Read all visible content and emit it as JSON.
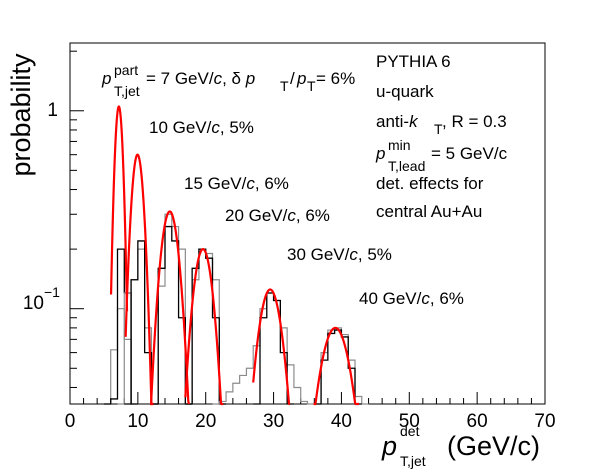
{
  "chart_data": {
    "type": "line",
    "x_axis": {
      "label": "p",
      "label_sup": "det",
      "label_sub": "T,jet",
      "unit": "(GeV/c)",
      "range": [
        0,
        70
      ],
      "ticks": [
        "0",
        "10",
        "20",
        "30",
        "40",
        "50",
        "60",
        "70"
      ]
    },
    "y_axis": {
      "label": "probability",
      "scale": "log",
      "range": [
        0.033,
        2.2
      ],
      "ticks": [
        {
          "value": 1,
          "label": "1"
        },
        {
          "value": 0.1,
          "label": "10",
          "exp": "−1"
        }
      ]
    },
    "header": {
      "p": "p",
      "sup": "part",
      "sub": "T,jet",
      "value_text": " = 7 GeV/",
      "c_text": "c",
      "comma": ", ",
      "delta": "δ ",
      "pt1": "p",
      "sub1": "T",
      "slash": "/",
      "pt2": "p",
      "sub2": "T",
      "res": " = 6%"
    },
    "info_box": {
      "generator": "PYTHIA 6",
      "parton": "u-quark",
      "algo_prefix": "anti-",
      "algo_k": "k",
      "algo_sub": "T",
      "algo_suffix": ", R = 0.3",
      "lead_p": "p",
      "lead_sup": "min",
      "lead_sub": "T,lead",
      "lead_value": " = 5 GeV/c",
      "det_line1": "det. effects for",
      "det_line2": "central Au+Au"
    },
    "series": [
      {
        "pt": 7,
        "res_pct": 6,
        "black": [
          [
            5,
            0.032
          ],
          [
            6,
            0.035
          ],
          [
            7,
            0.2
          ],
          [
            8,
            0.12
          ],
          [
            9,
            0.032
          ]
        ],
        "gray": [
          [
            5,
            0.032
          ],
          [
            6,
            0.062
          ],
          [
            7,
            0.1
          ],
          [
            8,
            0.07
          ],
          [
            9,
            0.032
          ]
        ],
        "fit": {
          "mu": 7.2,
          "sigma": 0.55,
          "peak": 1.05,
          "from": 6.05,
          "to": 8.4
        }
      },
      {
        "pt": 10,
        "res_pct": 5,
        "label": "10 GeV/",
        "c": "c",
        "suffix": ", 5%",
        "black": [
          [
            8,
            0.032
          ],
          [
            9,
            0.14
          ],
          [
            10,
            0.22
          ],
          [
            11,
            0.06
          ],
          [
            12,
            0.032
          ]
        ],
        "gray": [
          [
            7,
            0.032
          ],
          [
            8,
            0.12
          ],
          [
            9,
            0.14
          ],
          [
            10,
            0.2
          ],
          [
            11,
            0.08
          ],
          [
            12,
            0.032
          ]
        ],
        "fit": {
          "mu": 9.95,
          "sigma": 0.85,
          "peak": 0.6,
          "from": 8.2,
          "to": 12.3
        }
      },
      {
        "pt": 15,
        "res_pct": 6,
        "label": "15 GeV/",
        "c": "c",
        "suffix": ", 6%",
        "black": [
          [
            12,
            0.032
          ],
          [
            13,
            0.16
          ],
          [
            14,
            0.26
          ],
          [
            15,
            0.22
          ],
          [
            16,
            0.09
          ],
          [
            17,
            0.032
          ]
        ],
        "gray": [
          [
            12,
            0.032
          ],
          [
            13,
            0.13
          ],
          [
            14,
            0.3
          ],
          [
            15,
            0.26
          ],
          [
            16,
            0.2
          ],
          [
            17,
            0.032
          ]
        ],
        "fit": {
          "mu": 14.7,
          "sigma": 1.3,
          "peak": 0.31,
          "from": 11.8,
          "to": 17.5
        }
      },
      {
        "pt": 20,
        "res_pct": 6,
        "label": "20 GeV/",
        "c": "c",
        "suffix": ", 6%",
        "black": [
          [
            17,
            0.032
          ],
          [
            18,
            0.16
          ],
          [
            19,
            0.2
          ],
          [
            20,
            0.18
          ],
          [
            21,
            0.09
          ],
          [
            22,
            0.032
          ]
        ],
        "gray": [
          [
            17,
            0.032
          ],
          [
            18,
            0.14
          ],
          [
            19,
            0.2
          ],
          [
            20,
            0.19
          ],
          [
            21,
            0.14
          ],
          [
            22,
            0.032
          ]
        ],
        "fit": {
          "mu": 19.6,
          "sigma": 1.4,
          "peak": 0.2,
          "from": 17.0,
          "to": 22.6
        }
      },
      {
        "pt": 30,
        "res_pct": 5,
        "label": "30 GeV/",
        "c": "c",
        "suffix": ", 5%",
        "black": [
          [
            27,
            0.032
          ],
          [
            28,
            0.09
          ],
          [
            29,
            0.12
          ],
          [
            30,
            0.11
          ],
          [
            31,
            0.06
          ],
          [
            32,
            0.032
          ]
        ],
        "gray": [
          [
            21,
            0.032
          ],
          [
            22,
            0.034
          ],
          [
            23,
            0.038
          ],
          [
            24,
            0.042
          ],
          [
            25,
            0.046
          ],
          [
            26,
            0.05
          ],
          [
            27,
            0.065
          ],
          [
            28,
            0.1
          ],
          [
            29,
            0.12
          ],
          [
            30,
            0.11
          ],
          [
            31,
            0.08
          ],
          [
            32,
            0.052
          ],
          [
            33,
            0.04
          ],
          [
            34,
            0.034
          ],
          [
            35,
            0.032
          ]
        ],
        "fit": {
          "mu": 29.5,
          "sigma": 1.7,
          "peak": 0.125,
          "from": 27.0,
          "to": 32.4
        }
      },
      {
        "pt": 40,
        "res_pct": 6,
        "label": "40 GeV/",
        "c": "c",
        "suffix": ", 6%",
        "black": [
          [
            36,
            0.032
          ],
          [
            37,
            0.055
          ],
          [
            38,
            0.075
          ],
          [
            39,
            0.078
          ],
          [
            40,
            0.072
          ],
          [
            41,
            0.05
          ],
          [
            42,
            0.032
          ]
        ],
        "gray": [
          [
            36,
            0.032
          ],
          [
            37,
            0.06
          ],
          [
            38,
            0.078
          ],
          [
            39,
            0.08
          ],
          [
            40,
            0.074
          ],
          [
            41,
            0.055
          ],
          [
            42,
            0.036
          ],
          [
            43,
            0.032
          ]
        ],
        "fit": {
          "mu": 39.1,
          "sigma": 2.2,
          "peak": 0.08,
          "from": 35.9,
          "to": 42.6
        }
      }
    ],
    "colors": {
      "data": "#000000",
      "alt": "#8c8c8c",
      "fit": "#ff0000"
    }
  }
}
